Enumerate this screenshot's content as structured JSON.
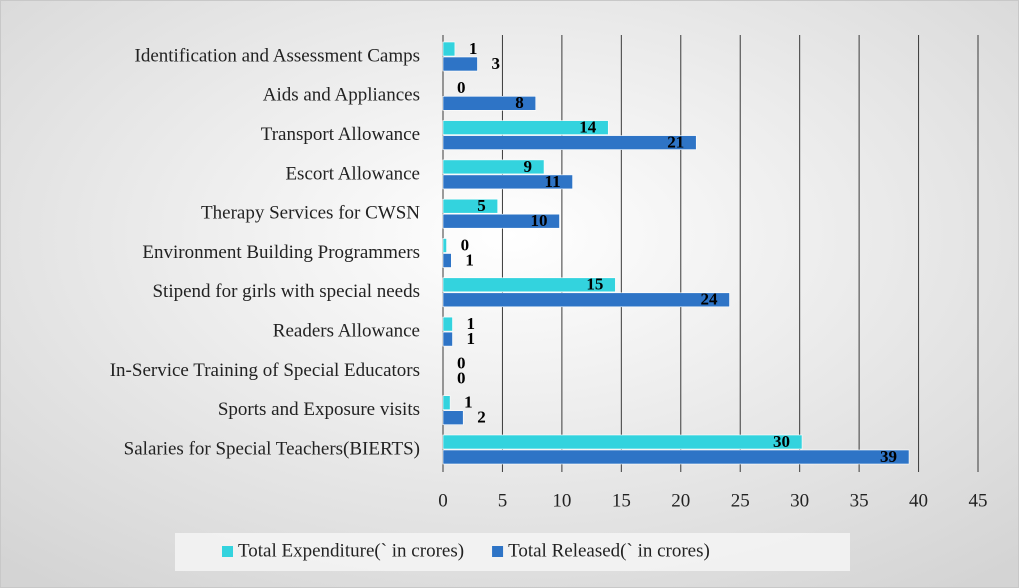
{
  "chart_data": {
    "type": "bar",
    "orientation": "horizontal",
    "categories": [
      "Identification and Assessment Camps",
      "Aids and Appliances",
      "Transport Allowance",
      "Escort Allowance",
      "Therapy Services for CWSN",
      "Environment Building Programmers",
      "Stipend for girls with special needs",
      "Readers Allowance",
      "In-Service Training of Special Educators",
      "Sports and Exposure visits",
      "Salaries for Special Teachers(BIERTS)"
    ],
    "series": [
      {
        "name": "Total Expenditure(` in crores)",
        "color": "#33d3de",
        "values": [
          1.0,
          0,
          13.9,
          8.5,
          4.6,
          0.3,
          14.5,
          0.8,
          0,
          0.6,
          30.2
        ],
        "value_labels": [
          "1",
          "0",
          "14",
          "9",
          "5",
          "0",
          "15",
          "1",
          "0",
          "1",
          "30"
        ]
      },
      {
        "name": "Total Released(` in crores)",
        "color": "#2e74c6",
        "values": [
          2.9,
          7.8,
          21.3,
          10.9,
          9.8,
          0.7,
          24.1,
          0.8,
          0,
          1.7,
          39.2
        ],
        "value_labels": [
          "3",
          "8",
          "21",
          "11",
          "10",
          "1",
          "24",
          "1",
          "0",
          "2",
          "39"
        ]
      }
    ],
    "xlim": [
      0,
      45
    ],
    "xticks": [
      0,
      5,
      10,
      15,
      20,
      25,
      30,
      35,
      40,
      45
    ],
    "grid": true,
    "legend": "bottom"
  }
}
